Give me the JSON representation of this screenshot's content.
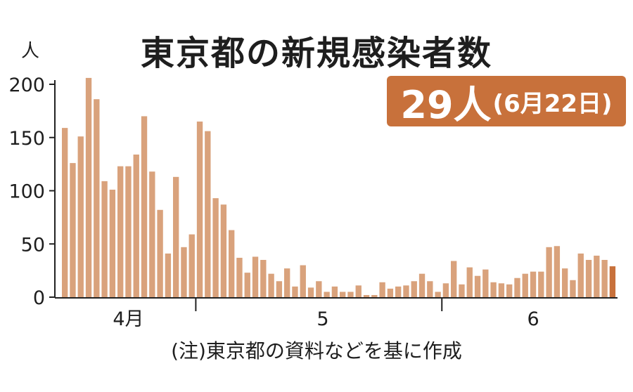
{
  "chart_data": {
    "type": "bar",
    "title": "東京都の新規感染者数",
    "ylabel": "人",
    "ylim": [
      0,
      200
    ],
    "yticks": [
      0,
      50,
      100,
      150,
      200
    ],
    "xtick_labels": [
      "4月",
      "5",
      "6"
    ],
    "values": [
      159,
      126,
      151,
      206,
      186,
      109,
      101,
      123,
      123,
      134,
      170,
      118,
      82,
      41,
      113,
      47,
      59,
      165,
      156,
      93,
      87,
      63,
      37,
      23,
      38,
      35,
      22,
      15,
      27,
      10,
      30,
      9,
      15,
      5,
      10,
      5,
      5,
      11,
      2,
      2,
      14,
      8,
      10,
      11,
      15,
      22,
      15,
      5,
      13,
      34,
      12,
      28,
      20,
      26,
      14,
      13,
      12,
      18,
      22,
      24,
      24,
      47,
      48,
      27,
      16,
      41,
      35,
      39,
      35,
      29
    ],
    "highlight_color": "#c8713b",
    "bar_color": "#d9a27c",
    "grid": false,
    "annotation": {
      "value": "29人",
      "note": "(6月22日)"
    }
  },
  "footnote": "(注)東京都の資料などを基に作成"
}
